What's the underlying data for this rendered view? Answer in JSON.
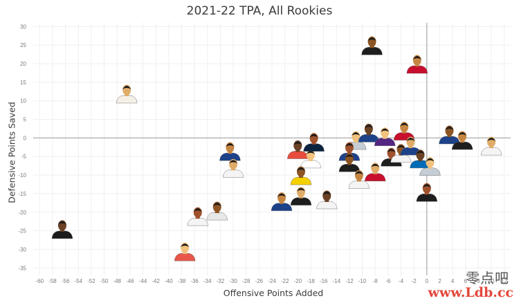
{
  "chart_data": {
    "type": "scatter",
    "title": "2021-22 TPA, All Rookies",
    "xlabel": "Offensive Points Added",
    "ylabel": "Defensive Points Saved",
    "xlim": [
      -61,
      13
    ],
    "ylim": [
      -37,
      31
    ],
    "xticks": [
      -60,
      -58,
      -56,
      -54,
      -52,
      -50,
      -48,
      -46,
      -44,
      -42,
      -40,
      -38,
      -36,
      -34,
      -32,
      -30,
      -28,
      -26,
      -24,
      -22,
      -20,
      -18,
      -16,
      -14,
      -12,
      -10,
      -8,
      -6,
      -4,
      -2,
      0,
      2,
      4,
      6,
      8,
      10,
      12
    ],
    "yticks": [
      30,
      25,
      20,
      15,
      10,
      5,
      0,
      -5,
      -10,
      -15,
      -20,
      -25,
      -30,
      -35
    ],
    "grid": true,
    "marker": "player-headshot",
    "points": [
      {
        "x": -8.5,
        "y": 25.0,
        "jersey": "#1e1e1e"
      },
      {
        "x": -1.5,
        "y": 20.0,
        "jersey": "#c8102e"
      },
      {
        "x": -46.5,
        "y": 12.0,
        "jersey": "#f5f0e6"
      },
      {
        "x": -56.5,
        "y": -24.5,
        "jersey": "#1b1b1b"
      },
      {
        "x": -37.5,
        "y": -30.5,
        "jersey": "#e8584a"
      },
      {
        "x": -35.5,
        "y": -21.0,
        "jersey": "#f4f4f4"
      },
      {
        "x": -32.5,
        "y": -19.5,
        "jersey": "#e8e8e8"
      },
      {
        "x": -30.5,
        "y": -3.5,
        "jersey": "#1d428a"
      },
      {
        "x": -30.0,
        "y": -8.0,
        "jersey": "#f4f4f4"
      },
      {
        "x": -20.0,
        "y": -3.0,
        "jersey": "#e74c3c"
      },
      {
        "x": -18.0,
        "y": -5.5,
        "jersey": "#ffffff"
      },
      {
        "x": -17.5,
        "y": -1.0,
        "jersey": "#0c2340"
      },
      {
        "x": -19.5,
        "y": -10.0,
        "jersey": "#f5d000"
      },
      {
        "x": -22.5,
        "y": -17.0,
        "jersey": "#1d428a"
      },
      {
        "x": -19.5,
        "y": -15.5,
        "jersey": "#1e1e1e"
      },
      {
        "x": -15.5,
        "y": -16.5,
        "jersey": "#f4f4f4"
      },
      {
        "x": -11.0,
        "y": -0.5,
        "jersey": "#c4ced4"
      },
      {
        "x": -12.0,
        "y": -3.5,
        "jersey": "#1d428a"
      },
      {
        "x": -12.0,
        "y": -6.5,
        "jersey": "#1e1e1e"
      },
      {
        "x": -10.5,
        "y": -11.0,
        "jersey": "#f4f4f4"
      },
      {
        "x": -8.0,
        "y": -9.0,
        "jersey": "#c8102e"
      },
      {
        "x": -9.0,
        "y": 1.5,
        "jersey": "#1d428a"
      },
      {
        "x": -6.5,
        "y": 0.5,
        "jersey": "#552583"
      },
      {
        "x": -5.5,
        "y": -5.0,
        "jersey": "#1e1e1e"
      },
      {
        "x": -4.0,
        "y": -4.0,
        "jersey": "#f4f4f4"
      },
      {
        "x": -3.5,
        "y": 2.0,
        "jersey": "#c8102e"
      },
      {
        "x": -2.5,
        "y": -2.0,
        "jersey": "#1d428a"
      },
      {
        "x": -1.0,
        "y": -5.5,
        "jersey": "#006bb6"
      },
      {
        "x": 0.5,
        "y": -7.5,
        "jersey": "#c4ced4"
      },
      {
        "x": 0.0,
        "y": -14.5,
        "jersey": "#1e1e1e"
      },
      {
        "x": 3.5,
        "y": 1.0,
        "jersey": "#1d428a"
      },
      {
        "x": 5.5,
        "y": -0.5,
        "jersey": "#1e1e1e"
      },
      {
        "x": 10.0,
        "y": -2.0,
        "jersey": "#f4f4f4"
      }
    ]
  },
  "watermark": {
    "cn": "零点吧",
    "url": "www.Ldb.cc",
    "url_color": "#e3473b"
  }
}
